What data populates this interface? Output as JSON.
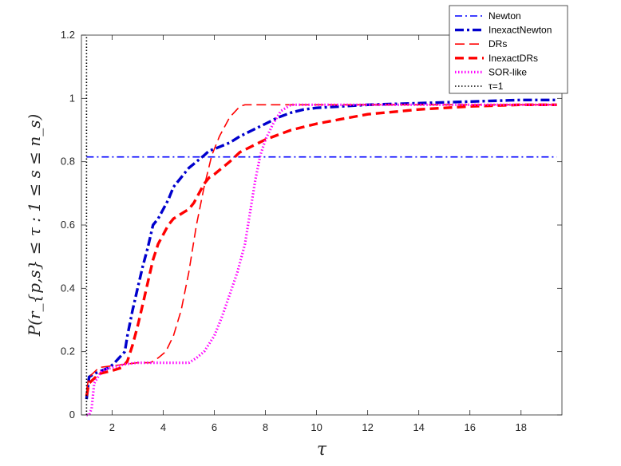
{
  "chart_data": {
    "type": "line",
    "xlabel": "τ",
    "ylabel": "P(r_{p,s} ≤ τ : 1 ≤ s ≤ n_s)",
    "xlim": [
      0.8,
      19.6
    ],
    "ylim": [
      0,
      1.2
    ],
    "xticks": [
      2,
      4,
      6,
      8,
      10,
      12,
      14,
      16,
      18
    ],
    "yticks": [
      0,
      0.2,
      0.4,
      0.6,
      0.8,
      1,
      1.2
    ],
    "xtick_labels": [
      "2",
      "4",
      "6",
      "8",
      "10",
      "12",
      "14",
      "16",
      "18"
    ],
    "ytick_labels": [
      "0",
      "0.2",
      "0.4",
      "0.6",
      "0.8",
      "1",
      "1.2"
    ],
    "grid": false,
    "legend_position": "top-right",
    "series": [
      {
        "name": "Newton",
        "color": "#0000ff",
        "style": "dashdot",
        "x": [
          1,
          19.4
        ],
        "y": [
          0.815,
          0.815
        ]
      },
      {
        "name": "InexactNewton",
        "color": "#0000cd",
        "style": "dashdot-bold",
        "x": [
          1,
          1.1,
          1.3,
          1.6,
          1.9,
          2.1,
          2.5,
          2.6,
          2.8,
          3.0,
          3.2,
          3.4,
          3.6,
          3.8,
          4.0,
          4.2,
          4.4,
          4.6,
          4.8,
          5.0,
          5.3,
          5.6,
          5.8,
          6.0,
          6.3,
          6.6,
          7.0,
          7.5,
          8.0,
          8.5,
          9.0,
          9.5,
          10.0,
          11.0,
          12.0,
          14.0,
          16.0,
          18.0,
          19.4
        ],
        "y": [
          0.05,
          0.12,
          0.13,
          0.14,
          0.15,
          0.165,
          0.2,
          0.25,
          0.33,
          0.4,
          0.47,
          0.53,
          0.6,
          0.62,
          0.65,
          0.68,
          0.72,
          0.74,
          0.76,
          0.78,
          0.8,
          0.82,
          0.835,
          0.84,
          0.85,
          0.86,
          0.88,
          0.9,
          0.92,
          0.94,
          0.955,
          0.965,
          0.97,
          0.975,
          0.98,
          0.985,
          0.99,
          0.995,
          0.995
        ]
      },
      {
        "name": "DRs",
        "color": "#ff0000",
        "style": "dashed",
        "x": [
          1,
          1.1,
          1.5,
          2.0,
          2.5,
          3.0,
          3.5,
          3.8,
          4.1,
          4.4,
          4.7,
          5.0,
          5.3,
          5.6,
          5.9,
          6.2,
          6.6,
          7.0,
          7.2,
          8.0,
          9.0,
          10.0,
          12.0,
          14.0,
          16.0,
          18.0,
          19.4
        ],
        "y": [
          0.08,
          0.12,
          0.15,
          0.155,
          0.16,
          0.165,
          0.165,
          0.18,
          0.2,
          0.25,
          0.33,
          0.45,
          0.6,
          0.72,
          0.82,
          0.88,
          0.94,
          0.975,
          0.98,
          0.98,
          0.98,
          0.98,
          0.98,
          0.98,
          0.98,
          0.98,
          0.98
        ]
      },
      {
        "name": "InexactDRs",
        "color": "#ff0000",
        "style": "dashed-bold",
        "x": [
          1,
          1.1,
          1.5,
          2.0,
          2.4,
          2.6,
          2.8,
          3.0,
          3.2,
          3.4,
          3.6,
          3.8,
          4.0,
          4.2,
          4.4,
          4.6,
          4.8,
          5.0,
          5.2,
          5.4,
          5.6,
          5.8,
          6.0,
          6.3,
          6.6,
          7.0,
          7.5,
          8.0,
          8.5,
          9.0,
          9.5,
          10.0,
          11.0,
          12.0,
          14.0,
          16.0,
          18.0,
          19.4
        ],
        "y": [
          0.06,
          0.1,
          0.13,
          0.14,
          0.15,
          0.17,
          0.22,
          0.28,
          0.35,
          0.42,
          0.49,
          0.54,
          0.57,
          0.6,
          0.62,
          0.63,
          0.64,
          0.65,
          0.67,
          0.7,
          0.73,
          0.75,
          0.76,
          0.78,
          0.8,
          0.83,
          0.85,
          0.87,
          0.885,
          0.9,
          0.91,
          0.92,
          0.935,
          0.95,
          0.965,
          0.975,
          0.98,
          0.98
        ]
      },
      {
        "name": "SOR-like",
        "color": "#ff00ff",
        "style": "dotted",
        "x": [
          1,
          1.1,
          1.2,
          1.3,
          1.6,
          2.0,
          2.5,
          3.0,
          4.0,
          5.0,
          5.3,
          5.6,
          6.0,
          6.3,
          6.6,
          6.9,
          7.2,
          7.4,
          7.6,
          7.8,
          8.0,
          8.3,
          8.6,
          9.0,
          9.5,
          10.0,
          12.0,
          14.0,
          16.0,
          18.0,
          19.4
        ],
        "y": [
          0,
          0,
          0.02,
          0.1,
          0.14,
          0.15,
          0.16,
          0.165,
          0.165,
          0.165,
          0.18,
          0.2,
          0.25,
          0.31,
          0.38,
          0.45,
          0.54,
          0.64,
          0.74,
          0.82,
          0.87,
          0.92,
          0.96,
          0.98,
          0.98,
          0.98,
          0.98,
          0.98,
          0.98,
          0.98,
          0.98
        ]
      },
      {
        "name": "τ=1",
        "color": "#000000",
        "style": "dotted-black",
        "x": [
          1,
          1
        ],
        "y": [
          0,
          1.2
        ]
      }
    ]
  }
}
